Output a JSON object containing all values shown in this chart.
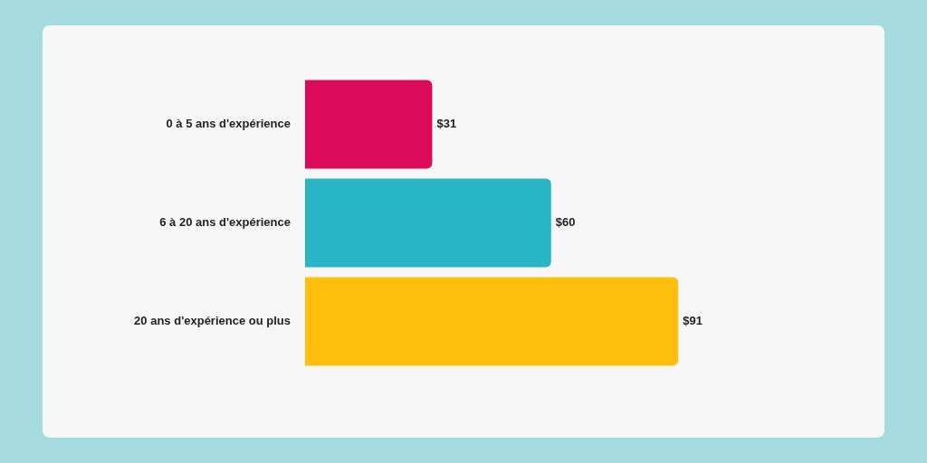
{
  "chart_data": {
    "type": "bar",
    "orientation": "horizontal",
    "categories": [
      "0 à 5 ans d'expérience",
      "6 à 20 ans d'expérience",
      "20 ans d'expérience ou plus"
    ],
    "values": [
      31,
      60,
      91
    ],
    "colors": [
      "#dc0a5a",
      "#29b5c6",
      "#ffbf0f"
    ],
    "value_labels": [
      "$31",
      "$60",
      "$91"
    ]
  }
}
